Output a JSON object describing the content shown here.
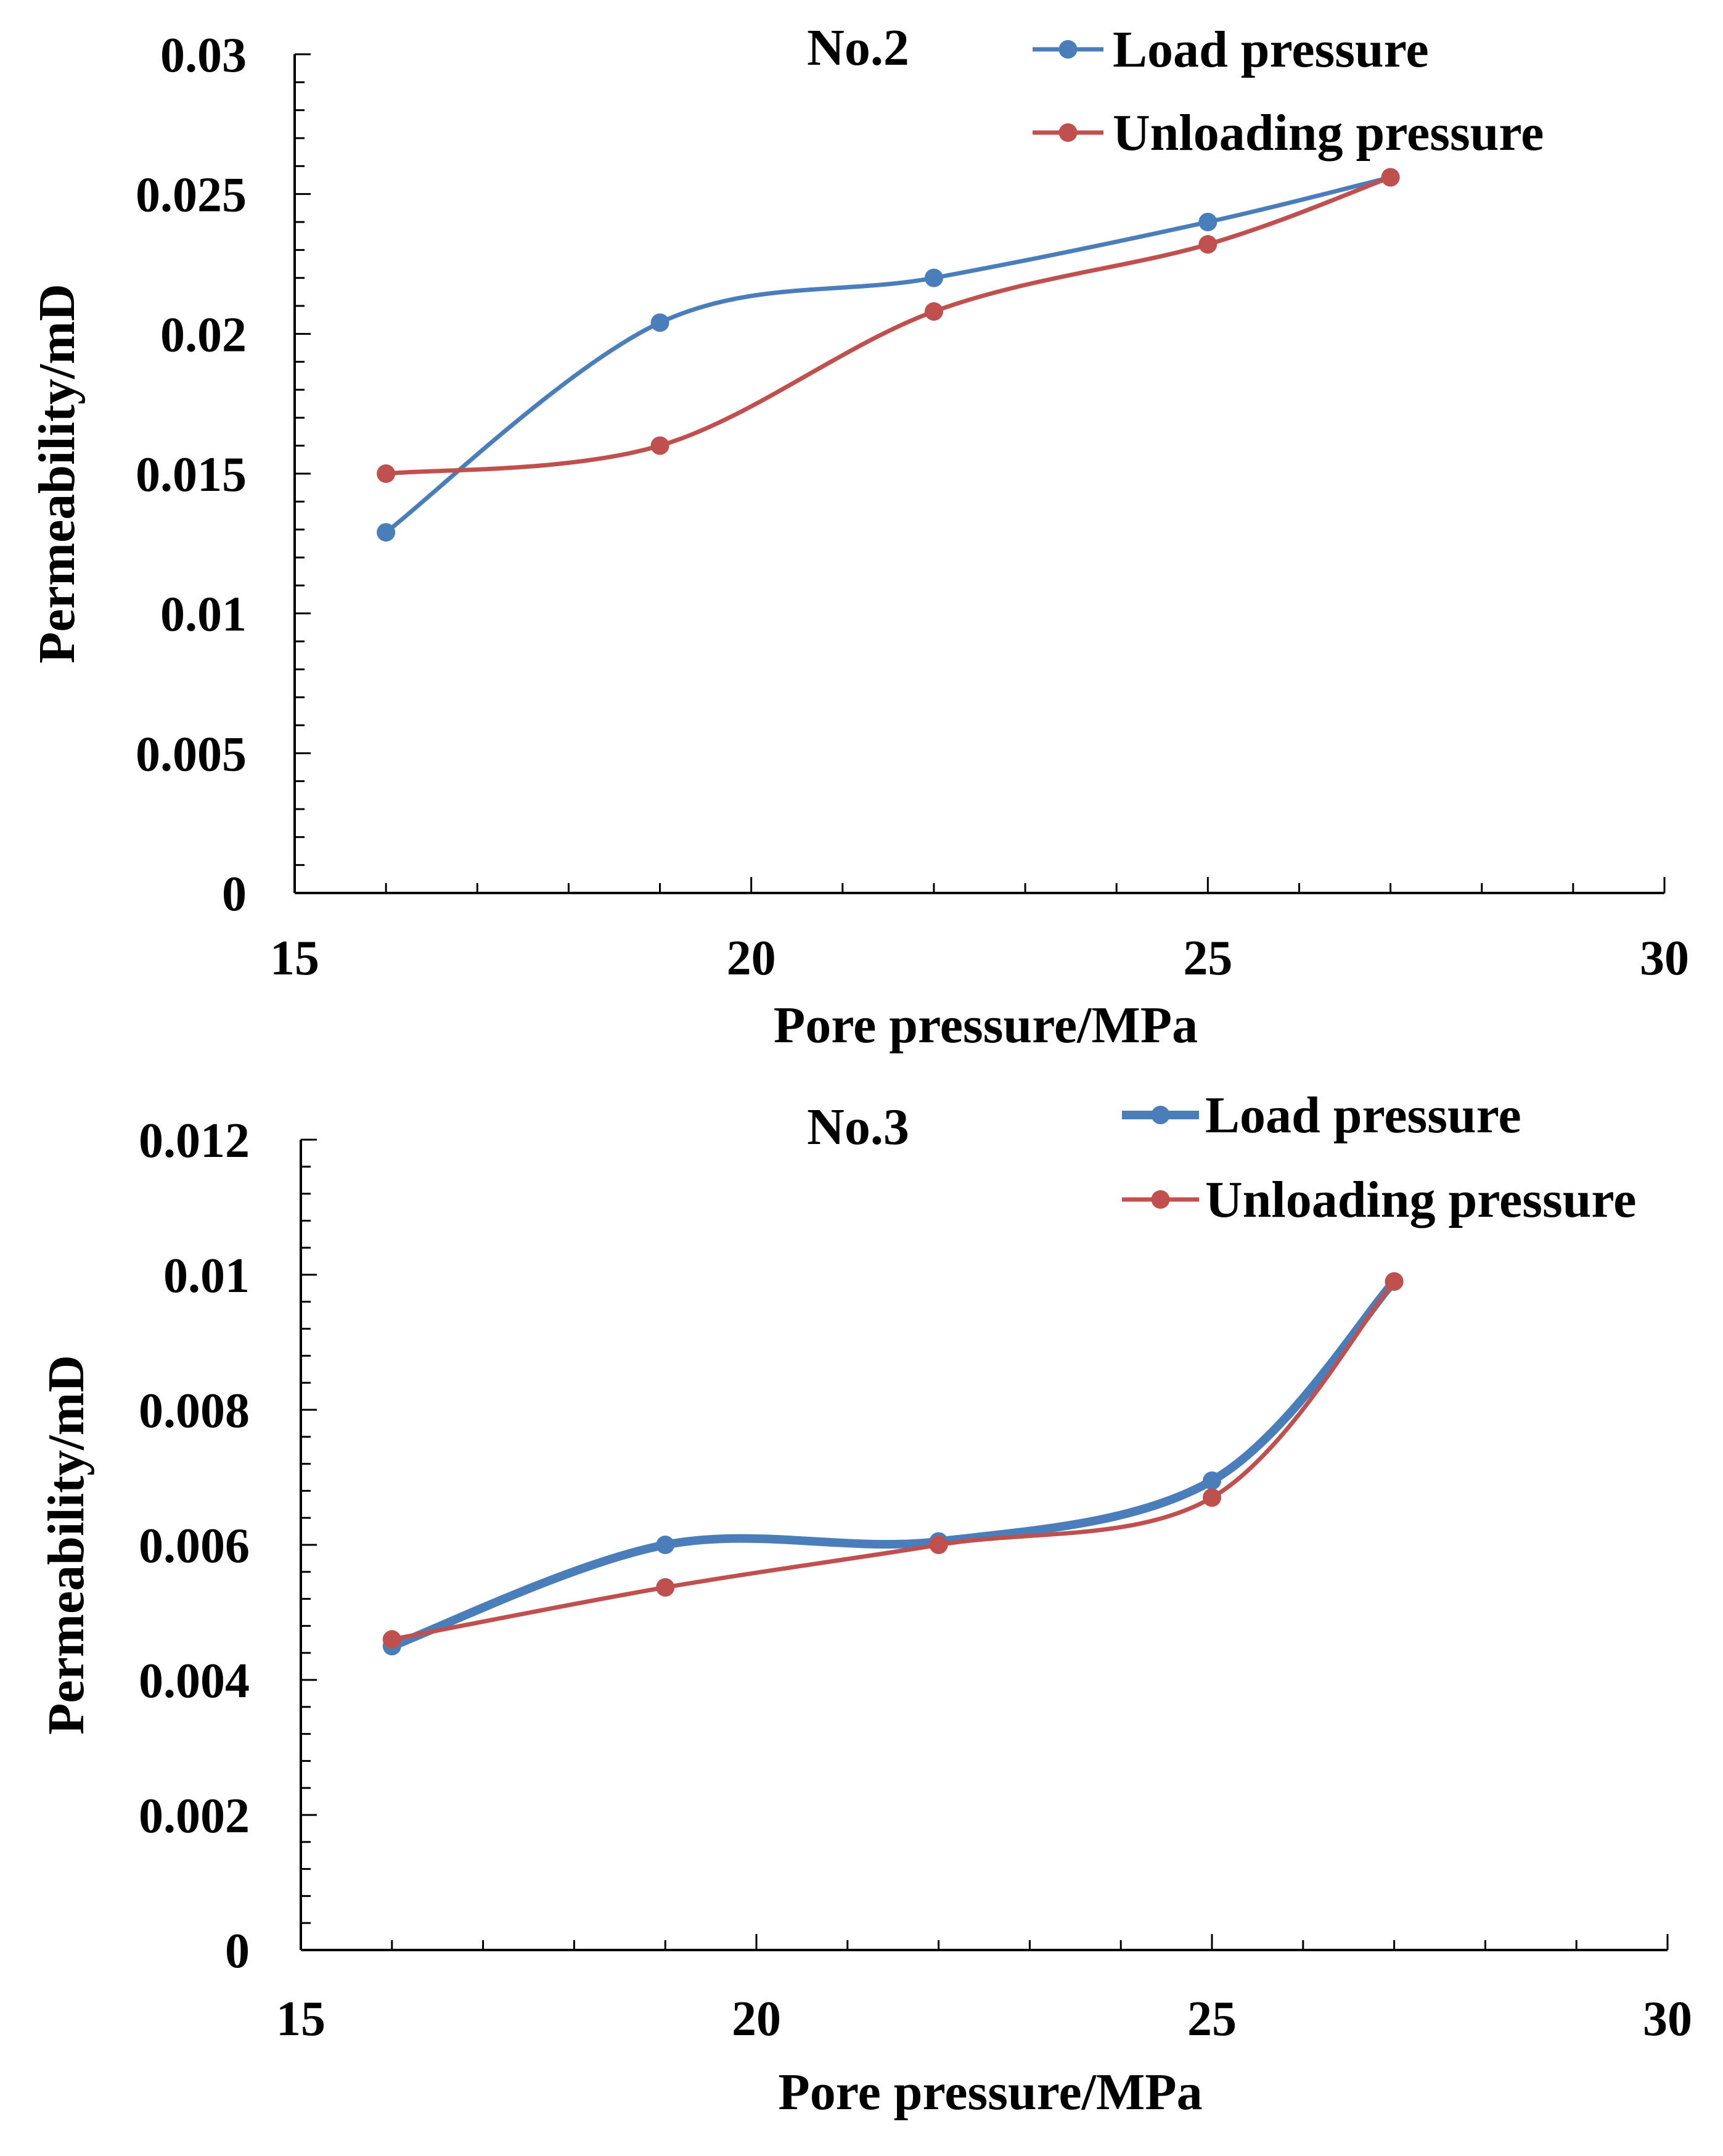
{
  "chart_data": [
    {
      "type": "line",
      "title": "No.2",
      "xlabel": "Pore pressure/MPa",
      "ylabel": "Permeability/mD",
      "xlim": [
        15,
        30
      ],
      "ylim": [
        0,
        0.03
      ],
      "xticks": [
        15,
        20,
        25,
        30
      ],
      "xtick_labels": [
        "15",
        "20",
        "25",
        "30"
      ],
      "yticks": [
        0,
        0.005,
        0.01,
        0.015,
        0.02,
        0.025,
        0.03
      ],
      "ytick_labels": [
        "0",
        "0.005",
        "0.01",
        "0.015",
        "0.02",
        "0.025",
        "0.03"
      ],
      "smooth": true,
      "legend_position": "top-right",
      "series": [
        {
          "name": "Load pressure",
          "color": "#4a7ebb",
          "width": "thin",
          "x": [
            16,
            19,
            22,
            25,
            27
          ],
          "y": [
            0.0129,
            0.0204,
            0.022,
            0.024,
            0.0256
          ]
        },
        {
          "name": "Unloading pressure",
          "color": "#c0504d",
          "width": "thin",
          "x": [
            16,
            19,
            22,
            25,
            27
          ],
          "y": [
            0.015,
            0.016,
            0.0208,
            0.0232,
            0.0256
          ]
        }
      ]
    },
    {
      "type": "line",
      "title": "No.3",
      "xlabel": "Pore pressure/MPa",
      "ylabel": "Permeability/mD",
      "xlim": [
        15,
        30
      ],
      "ylim": [
        0,
        0.012
      ],
      "xticks": [
        15,
        20,
        25,
        30
      ],
      "xtick_labels": [
        "15",
        "20",
        "25",
        "30"
      ],
      "yticks": [
        0,
        0.002,
        0.004,
        0.006,
        0.008,
        0.01,
        0.012
      ],
      "ytick_labels": [
        "0",
        "0.002",
        "0.004",
        "0.006",
        "0.008",
        "0.01",
        "0.012"
      ],
      "smooth": true,
      "legend_position": "top-right",
      "series": [
        {
          "name": "Load pressure",
          "color": "#4a7ebb",
          "width": "thick",
          "x": [
            16,
            19,
            22,
            25,
            27
          ],
          "y": [
            0.0045,
            0.006,
            0.00605,
            0.00695,
            0.0099
          ]
        },
        {
          "name": "Unloading pressure",
          "color": "#c0504d",
          "width": "thin",
          "x": [
            16,
            19,
            22,
            25,
            27
          ],
          "y": [
            0.0046,
            0.00537,
            0.006,
            0.0067,
            0.0099
          ]
        }
      ]
    }
  ]
}
